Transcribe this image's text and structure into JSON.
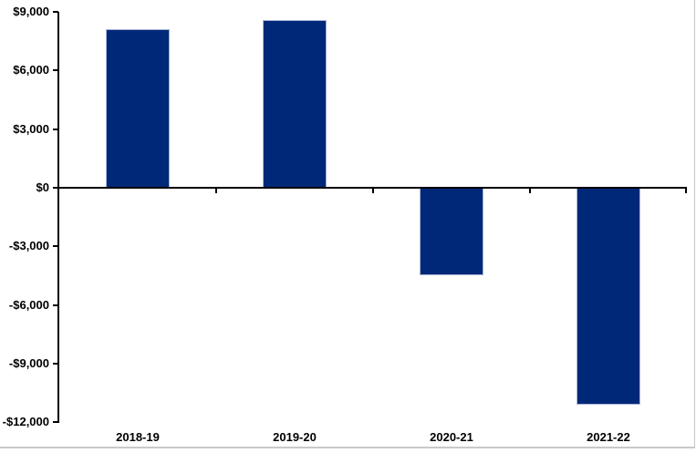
{
  "chart_data": {
    "type": "bar",
    "title": "",
    "xlabel": "",
    "ylabel": "",
    "categories": [
      "2018-19",
      "2019-20",
      "2020-21",
      "2021-22"
    ],
    "values": [
      8100,
      8600,
      -4500,
      -11100
    ],
    "ylim": [
      -12000,
      9000
    ],
    "ytick_step": 3000,
    "ytick_labels": [
      "$9,000",
      "$6,000",
      "$3,000",
      "$0",
      "-$3,000",
      "-$6,000",
      "-$9,000",
      "-$12,000"
    ],
    "grid": false,
    "legend": "none",
    "colors": {
      "bar": "#002878",
      "bar_border": "#a9b5d6",
      "axis": "#000000",
      "text": "#000000",
      "frame": "#c6c6c6",
      "background": "#ffffff"
    }
  }
}
